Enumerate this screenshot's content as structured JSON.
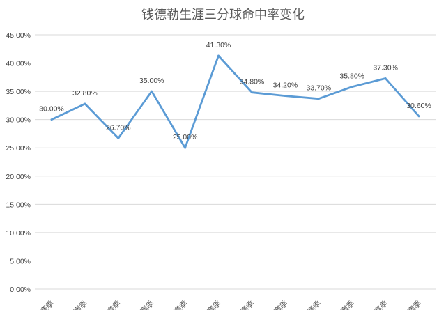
{
  "chart_data": {
    "type": "line",
    "title": "钱德勒生涯三分球命中率变化",
    "xlabel": "",
    "ylabel": "",
    "ylim": [
      0,
      0.45
    ],
    "ytick_labels": [
      "0.00%",
      "5.00%",
      "10.00%",
      "15.00%",
      "20.00%",
      "25.00%",
      "30.00%",
      "35.00%",
      "40.00%",
      "45.00%"
    ],
    "grid": true,
    "legend": "none",
    "categories": [
      "赛季",
      "赛季",
      "赛季",
      "赛季",
      "赛季",
      "赛季",
      "赛季",
      "赛季",
      "赛季",
      "赛季",
      "赛季",
      "赛季"
    ],
    "series": [
      {
        "values": [
          0.3,
          0.328,
          0.267,
          0.35,
          0.25,
          0.413,
          0.348,
          0.342,
          0.337,
          0.358,
          0.373,
          0.306
        ],
        "labels": [
          "30.00%",
          "32.80%",
          "26.70%",
          "35.00%",
          "25.00%",
          "41.30%",
          "34.80%",
          "34.20%",
          "33.70%",
          "35.80%",
          "37.30%",
          "30.60%"
        ],
        "color": "#5b9bd5"
      }
    ]
  }
}
